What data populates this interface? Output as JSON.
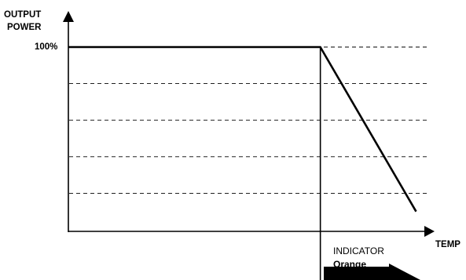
{
  "chart_data": {
    "type": "line",
    "ylabel": [
      "OUTPUT",
      "POWER"
    ],
    "xlabel": "TEMP",
    "y_tick_label": "100%",
    "grid": "horizontal dashed",
    "series": [
      {
        "x": [
          0,
          0.605,
          0.835
        ],
        "y": [
          100,
          100,
          10
        ]
      }
    ],
    "xlim": [
      0,
      0.86
    ],
    "ylim": [
      0,
      100
    ],
    "threshold_x": 0.605,
    "gridline_y": [
      100,
      80,
      60,
      40,
      20
    ],
    "indicator": {
      "label": "INDICATOR",
      "value": "Orange"
    }
  }
}
